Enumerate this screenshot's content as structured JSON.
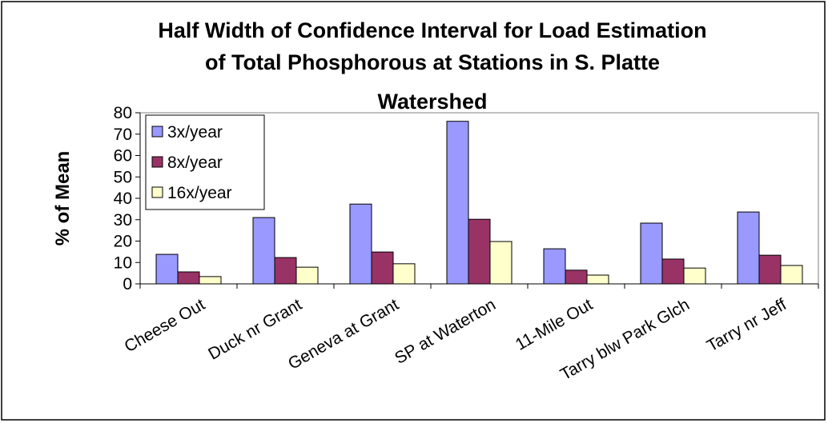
{
  "chart_data": {
    "type": "bar",
    "title": [
      "Half Width of Confidence Interval for Load Estimation",
      "of Total Phosphorous at Stations in S. Platte",
      "Watershed"
    ],
    "y_label": "% of Mean",
    "categories": [
      "Cheese Out",
      "Duck nr Grant",
      "Geneva at Grant",
      "SP at Waterton",
      "11-Mile Out",
      "Tarry blw Park Glch",
      "Tarry nr Jeff"
    ],
    "series": [
      {
        "name": "3x/year",
        "color": "#9999ff",
        "values": [
          13.8,
          31,
          37.3,
          76,
          16.4,
          28.4,
          33.6
        ]
      },
      {
        "name": "8x/year",
        "color": "#993366",
        "values": [
          5.6,
          12.3,
          14.9,
          30.2,
          6.4,
          11.6,
          13.4
        ]
      },
      {
        "name": "16x/year",
        "color": "#ffffcc",
        "values": [
          3.4,
          7.8,
          9.4,
          19.8,
          4.1,
          7.4,
          8.6
        ]
      }
    ],
    "ylim": [
      0,
      80
    ],
    "yticks": [
      0,
      10,
      20,
      30,
      40,
      50,
      60,
      70,
      80
    ],
    "grid": false,
    "legend": "upper left"
  }
}
